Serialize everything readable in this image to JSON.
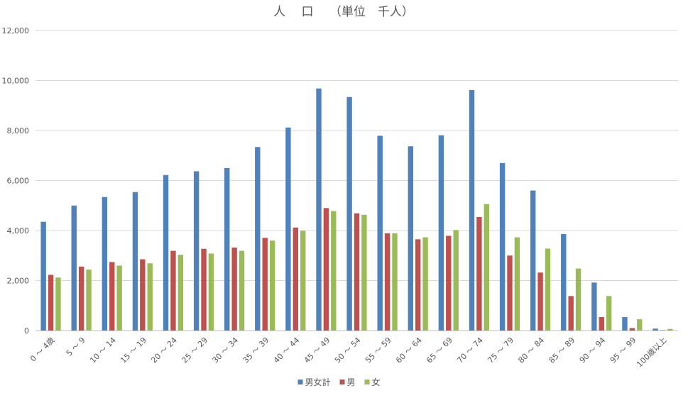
{
  "chart_data": {
    "type": "bar",
    "title": "人　 口　 （単位　千人）",
    "xlabel": "",
    "ylabel": "",
    "ylim": [
      0,
      12000
    ],
    "yticks": [
      "0",
      "2,000",
      "4,000",
      "6,000",
      "8,000",
      "10,000",
      "12,000"
    ],
    "grid": true,
    "legend_position": "bottom",
    "categories": [
      "0 ～ 4歳",
      "5 ～ 9",
      "10 ～ 14",
      "15 ～ 19",
      "20 ～ 24",
      "25 ～ 29",
      "30 ～ 34",
      "35 ～ 39",
      "40 ～ 44",
      "45 ～ 49",
      "50 ～ 54",
      "55 ～ 59",
      "60 ～ 64",
      "65 ～ 69",
      "70 ～ 74",
      "75 ～ 79",
      "80 ～ 84",
      "85 ～ 89",
      "90 ～ 94",
      "95 ～ 99",
      "100歳以上"
    ],
    "series": [
      {
        "name": "男女計",
        "color": "#4f81bd",
        "values": [
          4350,
          5000,
          5340,
          5540,
          6220,
          6370,
          6500,
          7340,
          8120,
          9680,
          9340,
          7790,
          7370,
          7810,
          9620,
          6700,
          5600,
          3860,
          1920,
          540,
          80
        ]
      },
      {
        "name": "男",
        "color": "#c0504d",
        "values": [
          2230,
          2560,
          2740,
          2850,
          3190,
          3270,
          3320,
          3710,
          4120,
          4900,
          4690,
          3890,
          3650,
          3790,
          4540,
          3000,
          2320,
          1380,
          540,
          100,
          15
        ]
      },
      {
        "name": "女",
        "color": "#9bbb59",
        "values": [
          2120,
          2440,
          2600,
          2690,
          3030,
          3080,
          3190,
          3600,
          3990,
          4780,
          4630,
          3890,
          3730,
          4020,
          5060,
          3730,
          3280,
          2480,
          1380,
          450,
          65
        ]
      }
    ]
  }
}
